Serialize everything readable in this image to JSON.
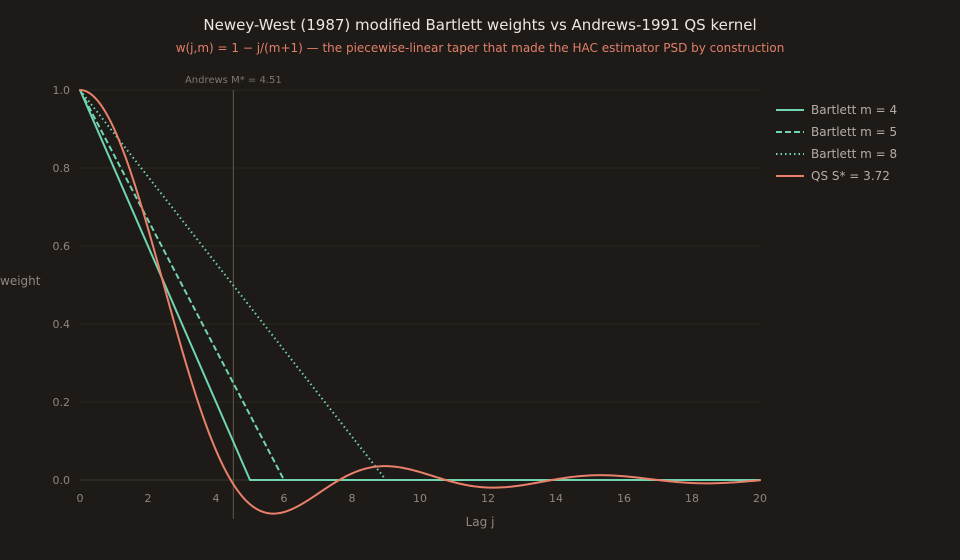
{
  "chart_data": {
    "type": "line",
    "title": "Newey-West (1987) modified Bartlett weights vs Andrews-1991 QS kernel",
    "subtitle": "w(j,m) = 1 − j/(m+1) — the piecewise-linear taper that made the HAC estimator PSD by construction",
    "xlabel": "Lag j",
    "ylabel": "weight",
    "xlim": [
      0,
      20
    ],
    "ylim": [
      -0.1,
      1.0
    ],
    "xticks": [
      "0",
      "2",
      "4",
      "6",
      "8",
      "10",
      "12",
      "14",
      "16",
      "18",
      "20"
    ],
    "yticks": [
      "0.0",
      "0.2",
      "0.4",
      "0.6",
      "0.8",
      "1.0"
    ],
    "grid": true,
    "legend_position": "top-right",
    "annotation": {
      "text": "Andrews M* = 4.51",
      "x": 4.51
    },
    "colors": {
      "bartlett": "#6fd6b0",
      "qs": "#e8806a",
      "background": "#1e1a17"
    },
    "series": [
      {
        "name": "Bartlett m = 4",
        "kernel": "bartlett",
        "m": 4,
        "style": "solid",
        "x": [
          0,
          5,
          20
        ],
        "y": [
          1.0,
          0.0,
          0.0
        ]
      },
      {
        "name": "Bartlett m = 5",
        "kernel": "bartlett",
        "m": 5,
        "style": "dashed",
        "x": [
          0,
          6
        ],
        "y": [
          1.0,
          0.0
        ]
      },
      {
        "name": "Bartlett m = 8",
        "kernel": "bartlett",
        "m": 8,
        "style": "dotted",
        "x": [
          0,
          9
        ],
        "y": [
          1.0,
          0.0
        ]
      },
      {
        "name": "QS S* = 3.72",
        "kernel": "qs",
        "S": 3.72,
        "style": "solid",
        "x": [
          0,
          20
        ]
      }
    ]
  }
}
